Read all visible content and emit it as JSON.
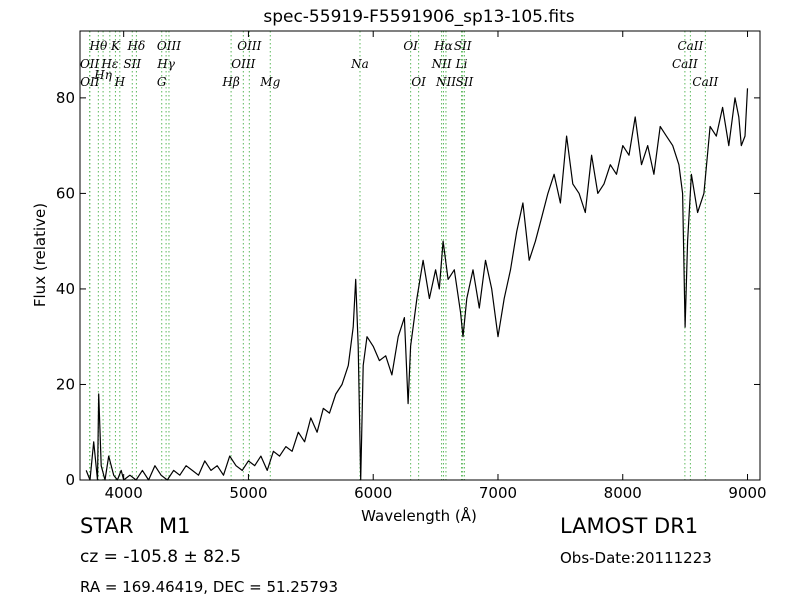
{
  "chart_data": {
    "type": "line",
    "title": "spec-55919-F5591906_sp13-105.fits",
    "xlabel": "Wavelength (Å)",
    "ylabel": "Flux (relative)",
    "xlim": [
      3650,
      9100
    ],
    "ylim": [
      0,
      94
    ],
    "xticks": [
      4000,
      5000,
      6000,
      7000,
      8000,
      9000
    ],
    "yticks": [
      0,
      20,
      40,
      60,
      80
    ],
    "grid": false,
    "series": [
      {
        "color": "#000000",
        "x": [
          3700,
          3730,
          3760,
          3790,
          3800,
          3820,
          3850,
          3880,
          3920,
          3950,
          3980,
          4000,
          4050,
          4100,
          4150,
          4200,
          4250,
          4300,
          4350,
          4400,
          4450,
          4500,
          4550,
          4600,
          4650,
          4700,
          4750,
          4800,
          4850,
          4900,
          4950,
          5000,
          5050,
          5100,
          5150,
          5200,
          5250,
          5300,
          5350,
          5400,
          5450,
          5500,
          5550,
          5600,
          5650,
          5700,
          5750,
          5800,
          5840,
          5860,
          5880,
          5900,
          5920,
          5950,
          6000,
          6050,
          6100,
          6150,
          6200,
          6250,
          6280,
          6300,
          6350,
          6400,
          6450,
          6500,
          6530,
          6560,
          6600,
          6650,
          6700,
          6720,
          6750,
          6800,
          6850,
          6900,
          6950,
          7000,
          7050,
          7100,
          7150,
          7200,
          7250,
          7300,
          7350,
          7400,
          7450,
          7500,
          7550,
          7600,
          7650,
          7700,
          7750,
          7800,
          7850,
          7900,
          7950,
          8000,
          8050,
          8100,
          8150,
          8200,
          8250,
          8300,
          8350,
          8400,
          8450,
          8480,
          8500,
          8520,
          8550,
          8600,
          8650,
          8700,
          8750,
          8800,
          8850,
          8900,
          8930,
          8950,
          8980,
          9000
        ],
        "values": [
          2,
          0,
          8,
          0,
          18,
          3,
          0,
          5,
          1,
          0,
          2,
          0,
          1,
          0,
          2,
          0,
          3,
          1,
          0,
          2,
          1,
          3,
          2,
          1,
          4,
          2,
          3,
          1,
          5,
          3,
          2,
          4,
          3,
          5,
          2,
          6,
          5,
          7,
          6,
          10,
          8,
          13,
          10,
          15,
          14,
          18,
          20,
          24,
          32,
          42,
          28,
          0,
          24,
          30,
          28,
          25,
          26,
          22,
          30,
          34,
          16,
          28,
          38,
          46,
          38,
          44,
          40,
          50,
          42,
          44,
          35,
          30,
          38,
          44,
          36,
          46,
          40,
          30,
          38,
          44,
          52,
          58,
          46,
          50,
          55,
          60,
          64,
          58,
          72,
          62,
          60,
          56,
          68,
          60,
          62,
          66,
          64,
          70,
          68,
          76,
          66,
          70,
          64,
          74,
          72,
          70,
          66,
          60,
          32,
          50,
          64,
          56,
          60,
          74,
          72,
          78,
          70,
          80,
          76,
          70,
          72,
          82
        ]
      }
    ],
    "spectral_lines": [
      {
        "label": "OII",
        "x": 3727,
        "row": 2
      },
      {
        "label": "OII",
        "x": 3729,
        "row": 3
      },
      {
        "label": "Hθ",
        "x": 3797,
        "row": 1
      },
      {
        "label": "Hη",
        "x": 3835,
        "row": 2.6
      },
      {
        "label": "Hε",
        "x": 3889,
        "row": 2
      },
      {
        "label": "K",
        "x": 3934,
        "row": 1
      },
      {
        "label": "SII",
        "x": 4069,
        "row": 2
      },
      {
        "label": "H",
        "x": 3969,
        "row": 3
      },
      {
        "label": "Hδ",
        "x": 4102,
        "row": 1
      },
      {
        "label": "OIII",
        "x": 4363,
        "row": 1
      },
      {
        "label": "Hγ",
        "x": 4340,
        "row": 2
      },
      {
        "label": "G",
        "x": 4305,
        "row": 3
      },
      {
        "label": "OIII",
        "x": 5007,
        "row": 1
      },
      {
        "label": "OIII",
        "x": 4959,
        "row": 2
      },
      {
        "label": "Hβ",
        "x": 4861,
        "row": 3
      },
      {
        "label": "Mg",
        "x": 5175,
        "row": 3
      },
      {
        "label": "Na",
        "x": 5894,
        "row": 2
      },
      {
        "label": "OI",
        "x": 6300,
        "row": 1
      },
      {
        "label": "OI",
        "x": 6364,
        "row": 3
      },
      {
        "label": "Hα",
        "x": 6563,
        "row": 1
      },
      {
        "label": "NII",
        "x": 6548,
        "row": 2
      },
      {
        "label": "NII",
        "x": 6583,
        "row": 3
      },
      {
        "label": "SII",
        "x": 6717,
        "row": 1
      },
      {
        "label": "Li",
        "x": 6708,
        "row": 2
      },
      {
        "label": "SII",
        "x": 6731,
        "row": 3
      },
      {
        "label": "CaII",
        "x": 8542,
        "row": 1
      },
      {
        "label": "CaII",
        "x": 8498,
        "row": 2
      },
      {
        "label": "CaII",
        "x": 8662,
        "row": 3
      }
    ]
  },
  "info": {
    "class_label": "STAR",
    "subclass_label": "M1",
    "cz_text": "cz = -105.8 ± 82.5",
    "radec_text": "RA = 169.46419, DEC = 51.25793",
    "survey_label": "LAMOST DR1",
    "obsdate_text": "Obs-Date:20111223"
  },
  "colors": {
    "spectrum": "#000000",
    "line_markers": "#5cb85c"
  }
}
